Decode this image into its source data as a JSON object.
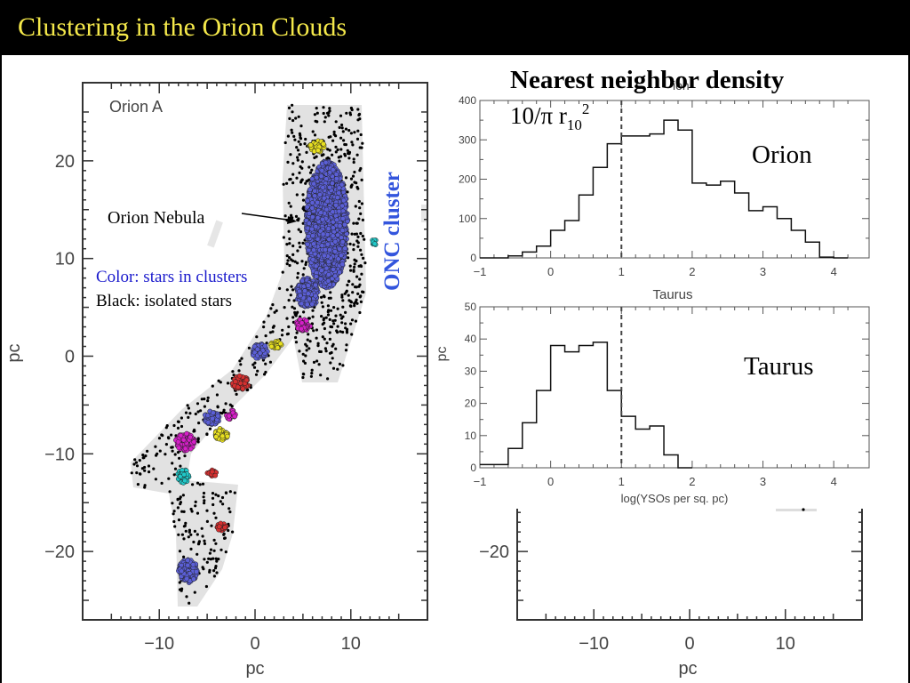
{
  "slide": {
    "title": "Clustering in the Orion Clouds"
  },
  "colors": {
    "title_text": "#f4e84a",
    "cloud": "#e2e2e2",
    "cluster_blue": "#5b5fd6",
    "cluster_magenta": "#d61fc8",
    "cluster_yellow": "#e8e020",
    "cluster_cyan": "#20c8c8",
    "cluster_red": "#d63030",
    "onc_label": "#3355dd",
    "legend_color_text": "#1a1acc"
  },
  "annotations": {
    "heading_line1": "Nearest neighbor density",
    "formula_base": "10/π r",
    "formula_sub": "10",
    "formula_sup": "2",
    "orion_nebula": "Orion Nebula",
    "legend_color": "Color: stars in clusters",
    "legend_black": "Black: isolated stars",
    "onc_cluster": "ONC cluster",
    "orion_label": "Orion",
    "taurus_label": "Taurus",
    "partial_header": "Taurus",
    "partial_behind": "ion",
    "partial_pc_left": "pc"
  },
  "chart_data": [
    {
      "type": "scatter",
      "panel_label": "Orion A",
      "xlabel": "pc",
      "ylabel": "pc",
      "xlim": [
        -18,
        18
      ],
      "ylim": [
        -27,
        28
      ],
      "xticks": [
        -10,
        0,
        10
      ],
      "yticks": [
        -20,
        -10,
        0,
        10,
        20
      ],
      "xtick_labels": [
        "−10",
        "0",
        "10"
      ],
      "ytick_labels": [
        "−20",
        "−10",
        "0",
        "10",
        "20"
      ],
      "clusters": [
        {
          "name": "ONC",
          "color": "blue",
          "x": 7.5,
          "y": 13.5,
          "rx": 2.2,
          "ry": 6.5
        },
        {
          "name": "",
          "color": "blue",
          "x": 5.5,
          "y": 6.5,
          "rx": 1.2,
          "ry": 1.5
        },
        {
          "name": "",
          "color": "yellow",
          "x": 6.5,
          "y": 21.5,
          "rx": 0.8,
          "ry": 0.6
        },
        {
          "name": "",
          "color": "magenta",
          "x": 5.0,
          "y": 3.2,
          "rx": 0.8,
          "ry": 0.6
        },
        {
          "name": "",
          "color": "blue",
          "x": 0.5,
          "y": 0.5,
          "rx": 0.8,
          "ry": 0.8
        },
        {
          "name": "",
          "color": "yellow",
          "x": 2.2,
          "y": 1.2,
          "rx": 0.6,
          "ry": 0.4
        },
        {
          "name": "",
          "color": "red",
          "x": -1.5,
          "y": -2.7,
          "rx": 0.9,
          "ry": 0.7
        },
        {
          "name": "",
          "color": "blue",
          "x": -4.5,
          "y": -6.3,
          "rx": 0.8,
          "ry": 0.7
        },
        {
          "name": "",
          "color": "magenta",
          "x": -2.5,
          "y": -6.0,
          "rx": 0.5,
          "ry": 0.5
        },
        {
          "name": "",
          "color": "yellow",
          "x": -3.5,
          "y": -8.0,
          "rx": 0.7,
          "ry": 0.6
        },
        {
          "name": "",
          "color": "magenta",
          "x": -7.3,
          "y": -8.8,
          "rx": 1.0,
          "ry": 0.9
        },
        {
          "name": "",
          "color": "cyan",
          "x": -7.5,
          "y": -12.3,
          "rx": 0.6,
          "ry": 0.7
        },
        {
          "name": "",
          "color": "red",
          "x": -4.5,
          "y": -12.0,
          "rx": 0.5,
          "ry": 0.4
        },
        {
          "name": "",
          "color": "red",
          "x": -3.5,
          "y": -17.5,
          "rx": 0.5,
          "ry": 0.4
        },
        {
          "name": "",
          "color": "blue",
          "x": -7.0,
          "y": -22.0,
          "rx": 1.0,
          "ry": 1.2
        },
        {
          "name": "",
          "color": "cyan",
          "x": 12.5,
          "y": 11.7,
          "rx": 0.3,
          "ry": 0.3
        }
      ]
    },
    {
      "type": "histogram",
      "panel_label": "Orion",
      "xlim": [
        -1,
        4.5
      ],
      "ylim": [
        0,
        400
      ],
      "xticks": [
        -1,
        0,
        1,
        2,
        3,
        4
      ],
      "yticks": [
        0,
        100,
        200,
        300,
        400
      ],
      "threshold_x": 1,
      "bin_width": 0.2,
      "bin_left": [
        -1.0,
        -0.8,
        -0.6,
        -0.4,
        -0.2,
        0.0,
        0.2,
        0.4,
        0.6,
        0.8,
        1.0,
        1.2,
        1.4,
        1.6,
        1.8,
        2.0,
        2.2,
        2.4,
        2.6,
        2.8,
        3.0,
        3.2,
        3.4,
        3.6,
        3.8,
        4.0
      ],
      "values": [
        0,
        0,
        5,
        15,
        30,
        70,
        95,
        160,
        230,
        290,
        310,
        310,
        315,
        350,
        325,
        190,
        185,
        195,
        165,
        120,
        130,
        100,
        70,
        40,
        2,
        0
      ]
    },
    {
      "type": "histogram",
      "panel_label": "Taurus",
      "xlabel": "log(YSOs per sq. pc)",
      "xlim": [
        -1,
        4.5
      ],
      "ylim": [
        0,
        50
      ],
      "xticks": [
        -1,
        0,
        1,
        2,
        3,
        4
      ],
      "yticks": [
        0,
        10,
        20,
        30,
        40,
        50
      ],
      "threshold_x": 1,
      "bin_width": 0.2,
      "bin_left": [
        -1.0,
        -0.8,
        -0.6,
        -0.4,
        -0.2,
        0.0,
        0.2,
        0.4,
        0.6,
        0.8,
        1.0,
        1.2,
        1.4,
        1.6,
        1.8
      ],
      "values": [
        1,
        1,
        6,
        14,
        24,
        38,
        36,
        38,
        39,
        24,
        16,
        12,
        13,
        4,
        0
      ]
    },
    {
      "type": "axes",
      "xlabel": "pc",
      "xticks": [
        -10,
        0,
        10
      ],
      "xtick_labels": [
        "−10",
        "0",
        "10"
      ],
      "yticks": [
        -20
      ],
      "ytick_labels": [
        "−20"
      ]
    }
  ]
}
